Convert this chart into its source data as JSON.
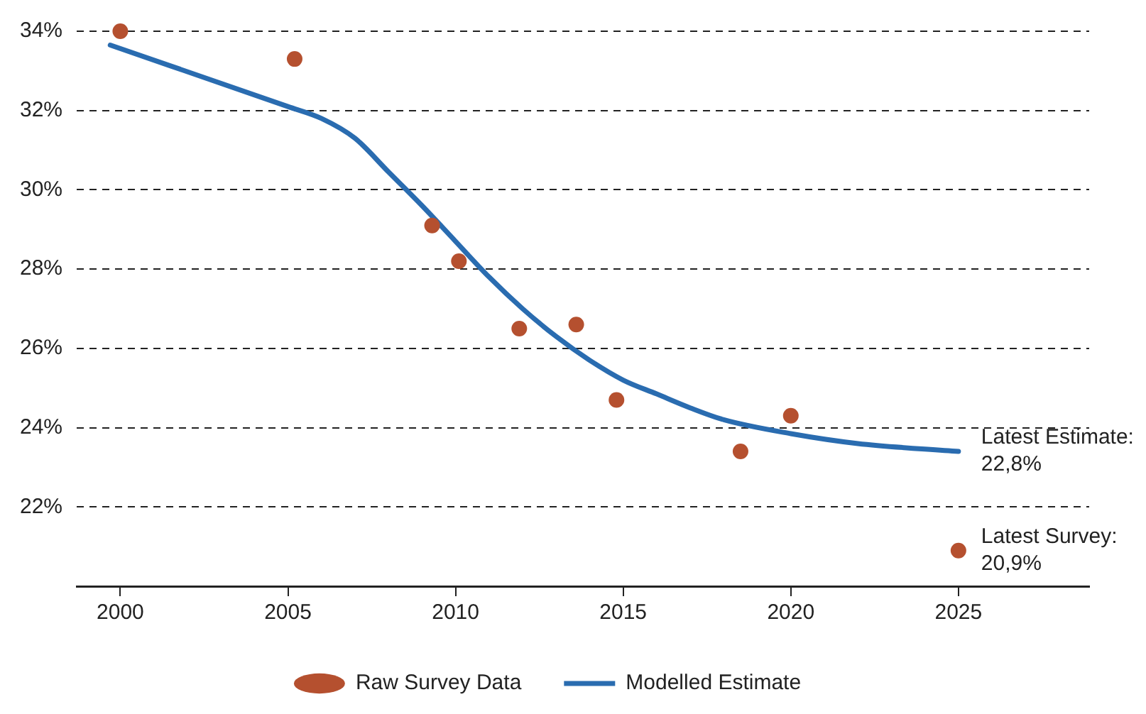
{
  "chart_data": {
    "type": "line",
    "xlim": [
      1998.7,
      2028.9
    ],
    "xticks": [
      2000,
      2005,
      2010,
      2015,
      2020,
      2025
    ],
    "ylim": [
      20,
      34
    ],
    "yticks": [
      {
        "value": 22,
        "label": "22%"
      },
      {
        "value": 24,
        "label": "24%"
      },
      {
        "value": 26,
        "label": "26%"
      },
      {
        "value": 28,
        "label": "28%"
      },
      {
        "value": 30,
        "label": "30%"
      },
      {
        "value": 32,
        "label": "32%"
      },
      {
        "value": 34,
        "label": "34%"
      }
    ],
    "grid": "y",
    "legend": "bottom",
    "series": [
      {
        "name": "Raw Survey Data",
        "type": "scatter",
        "marker": "circle",
        "color": "#b5502f",
        "x": [
          2000,
          2005.2,
          2009.3,
          2010.1,
          2011.9,
          2013.6,
          2014.8,
          2018.5,
          2020,
          2025
        ],
        "values": [
          34.0,
          33.3,
          29.1,
          28.2,
          26.5,
          26.6,
          24.7,
          23.4,
          24.3,
          20.9
        ]
      },
      {
        "name": "Modelled Estimate",
        "marker": "none",
        "color": "#2a6cb0",
        "x": [
          1999.7,
          2005,
          2006,
          2007,
          2008,
          2009,
          2010,
          2011,
          2012,
          2013,
          2014,
          2015,
          2016,
          2017,
          2018,
          2020,
          2022,
          2025
        ],
        "values": [
          33.65,
          32.1,
          31.8,
          31.3,
          30.45,
          29.6,
          28.7,
          27.8,
          27.0,
          26.3,
          25.7,
          25.2,
          24.85,
          24.5,
          24.2,
          23.85,
          23.6,
          23.4
        ]
      }
    ],
    "annotations": [
      {
        "text": "Latest Estimate: 22,8%",
        "x": 2025,
        "y": 23.4
      },
      {
        "text": "Latest Survey: 20,9%",
        "x": 2025,
        "y": 20.9
      }
    ]
  }
}
